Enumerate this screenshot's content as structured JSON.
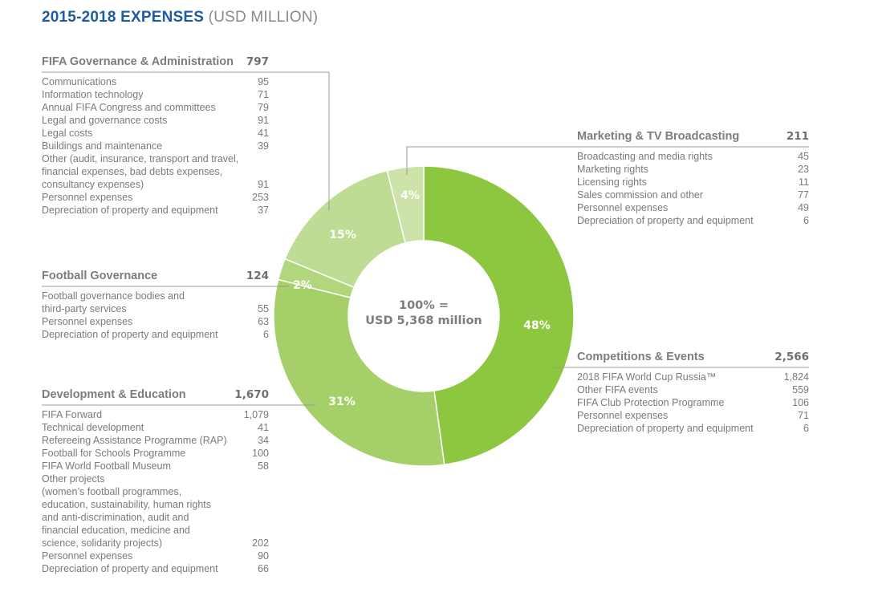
{
  "title": {
    "main": "2015-2018 EXPENSES",
    "unit": "(USD MILLION)"
  },
  "chart_data": {
    "type": "pie",
    "style": "donut",
    "center_label": [
      "100% =",
      "USD 5,368 million"
    ],
    "slices": [
      {
        "name": "Competitions & Events",
        "value": 2566,
        "pct_label": "48%",
        "color": "#8dc63f"
      },
      {
        "name": "Development & Education",
        "value": 1670,
        "pct_label": "31%",
        "color": "#a5cf68"
      },
      {
        "name": "Football Governance",
        "value": 124,
        "pct_label": "2%",
        "color": "#b2d67c"
      },
      {
        "name": "FIFA Governance & Administration",
        "value": 797,
        "pct_label": "15%",
        "color": "#bedc93"
      },
      {
        "name": "Marketing & TV Broadcasting",
        "value": 211,
        "pct_label": "4%",
        "color": "#cde3a9"
      }
    ]
  },
  "blocks": [
    {
      "title": "FIFA Governance & Administration",
      "total": "797",
      "rows": [
        [
          "Communications",
          "95"
        ],
        [
          "Information technology",
          "71"
        ],
        [
          "Annual FIFA Congress and committees",
          "79"
        ],
        [
          "Legal and governance costs",
          "91"
        ],
        [
          "Legal costs",
          "41"
        ],
        [
          "Buildings and maintenance",
          "39"
        ],
        [
          "Other (audit, insurance, transport and travel,\nfinancial expenses, bad debts expenses,\nconsultancy expenses)",
          "91"
        ],
        [
          "Personnel expenses",
          "253"
        ],
        [
          "Depreciation of property and equipment",
          "37"
        ]
      ]
    },
    {
      "title": "Football Governance",
      "total": "124",
      "rows": [
        [
          "Football governance bodies and\nthird-party services",
          "55"
        ],
        [
          "Personnel expenses",
          "63"
        ],
        [
          "Depreciation of property and equipment",
          "6"
        ]
      ]
    },
    {
      "title": "Development & Education",
      "total": "1,670",
      "rows": [
        [
          "FIFA Forward",
          "1,079"
        ],
        [
          "Technical development",
          "41"
        ],
        [
          "Refereeing Assistance Programme (RAP)",
          "34"
        ],
        [
          "Football for Schools Programme",
          "100"
        ],
        [
          "FIFA World Football Museum",
          "58"
        ],
        [
          "Other projects\n(women’s football programmes,\neducation, sustainability, human rights\nand anti-discrimination, audit and\nfinancial education, medicine and\nscience, solidarity projects)",
          "202"
        ],
        [
          "Personnel expenses",
          "90"
        ],
        [
          "Depreciation of property and equipment",
          "66"
        ]
      ]
    },
    {
      "title": "Marketing & TV Broadcasting",
      "total": "211",
      "rows": [
        [
          "Broadcasting and media rights",
          "45"
        ],
        [
          "Marketing rights",
          "23"
        ],
        [
          "Licensing rights",
          "11"
        ],
        [
          "Sales commission and other",
          "77"
        ],
        [
          "Personnel expenses",
          "49"
        ],
        [
          "Depreciation of property and equipment",
          "6"
        ]
      ]
    },
    {
      "title": "Competitions & Events",
      "total": "2,566",
      "rows": [
        [
          "2018 FIFA World Cup Russia™",
          "1,824"
        ],
        [
          "Other FIFA events",
          "559"
        ],
        [
          "FIFA Club Protection Programme",
          "106"
        ],
        [
          "Personnel expenses",
          "71"
        ],
        [
          "Depreciation of property and equipment",
          "6"
        ]
      ]
    }
  ]
}
